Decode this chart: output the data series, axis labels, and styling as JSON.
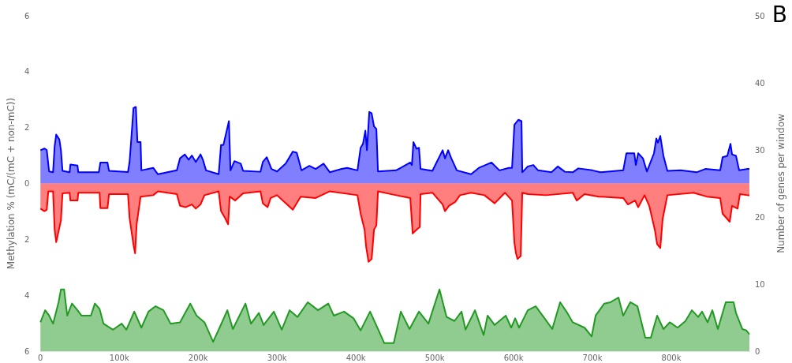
{
  "chart_data": {
    "type": "area",
    "ylabel": "Methylation % (mC/(mC + non-mC))",
    "y2label": "Number of genes per window",
    "annotations": [
      "B"
    ],
    "xlim": [
      0,
      900000
    ],
    "xticks": [
      0,
      {
        "value": 100000,
        "label": "100k"
      },
      {
        "value": 200000,
        "label": "200k"
      },
      {
        "value": 300000,
        "label": "300k"
      },
      {
        "value": 400000,
        "label": "400k"
      },
      {
        "value": 500000,
        "label": "500k"
      },
      {
        "value": 600000,
        "label": "600k"
      },
      {
        "value": 700000,
        "label": "700k"
      },
      {
        "value": 800000,
        "label": "800k"
      }
    ],
    "ylim": [
      -6,
      6
    ],
    "yticks": [
      {
        "value": -6,
        "label": "6"
      },
      {
        "value": -4,
        "label": "4"
      },
      {
        "value": -2,
        "label": "2"
      },
      0,
      2,
      4,
      6
    ],
    "y2lim": [
      0,
      50
    ],
    "y2ticks": [
      0,
      10,
      20,
      30,
      40,
      50
    ],
    "grid": false,
    "series": [
      {
        "color": "#0000ff",
        "x": [
          0,
          5000,
          8000,
          11000,
          16000,
          18000,
          20000,
          24000,
          26000,
          28000,
          37000,
          38000,
          47000,
          48000,
          74000,
          76000,
          85000,
          87000,
          111000,
          113000,
          115000,
          118000,
          121000,
          123000,
          127000,
          128000,
          143000,
          149000,
          173000,
          177000,
          183000,
          188000,
          192000,
          197000,
          203000,
          206000,
          210000,
          226000,
          229000,
          232000,
          239000,
          241000,
          246000,
          254000,
          257000,
          279000,
          282000,
          287000,
          293000,
          300000,
          311000,
          320000,
          325000,
          331000,
          341000,
          349000,
          359000,
          367000,
          382000,
          389000,
          402000,
          406000,
          409000,
          412000,
          414000,
          417000,
          420000,
          423000,
          426000,
          428000,
          451000,
          469000,
          471000,
          473000,
          477000,
          480000,
          482000,
          497000,
          510000,
          513000,
          517000,
          521000,
          528000,
          546000,
          556000,
          572000,
          582000,
          594000,
          598000,
          601000,
          606000,
          610000,
          611000,
          618000,
          625000,
          631000,
          648000,
          656000,
          665000,
          675000,
          682000,
          700000,
          710000,
          739000,
          743000,
          753000,
          755000,
          758000,
          764000,
          769000,
          778000,
          781000,
          783000,
          786000,
          790000,
          795000,
          812000,
          832000,
          843000,
          862000,
          865000,
          871000,
          875000,
          877000,
          882000,
          886000,
          897000,
          899000
        ],
        "values": [
          1.19,
          1.25,
          1.2,
          0.43,
          0.4,
          1.33,
          1.75,
          1.57,
          1.19,
          0.45,
          0.4,
          0.68,
          0.64,
          0.4,
          0.4,
          0.75,
          0.75,
          0.45,
          0.41,
          0.77,
          1.52,
          2.7,
          2.74,
          1.48,
          1.48,
          0.47,
          0.56,
          0.33,
          0.47,
          0.9,
          1.04,
          0.85,
          1.0,
          0.77,
          1.04,
          0.85,
          0.47,
          0.33,
          1.38,
          1.38,
          2.23,
          0.47,
          0.8,
          0.71,
          0.45,
          0.42,
          0.77,
          0.94,
          0.52,
          0.43,
          0.71,
          1.14,
          1.1,
          0.47,
          0.63,
          0.52,
          0.71,
          0.4,
          0.52,
          0.56,
          0.47,
          1.28,
          1.42,
          1.89,
          1.19,
          2.56,
          2.51,
          2.04,
          1.95,
          0.43,
          0.47,
          0.75,
          0.66,
          1.48,
          1.24,
          1.28,
          0.52,
          0.45,
          1.19,
          0.9,
          1.19,
          0.9,
          0.47,
          0.33,
          0.56,
          0.75,
          0.47,
          0.56,
          0.56,
          2.1,
          2.28,
          2.23,
          0.4,
          0.61,
          0.66,
          0.47,
          0.4,
          0.61,
          0.42,
          0.4,
          0.54,
          0.47,
          0.4,
          0.47,
          1.08,
          1.08,
          0.66,
          1.08,
          0.9,
          0.43,
          1.08,
          1.61,
          1.46,
          1.7,
          0.99,
          0.45,
          0.47,
          0.4,
          0.52,
          0.47,
          0.94,
          0.99,
          1.42,
          1.04,
          0.99,
          0.47,
          0.52,
          0.52
        ]
      },
      {
        "color": "#ff0000",
        "x": [
          0,
          5000,
          8000,
          10000,
          16000,
          18000,
          20000,
          26000,
          28000,
          37000,
          38000,
          47000,
          48000,
          75000,
          76000,
          85000,
          87000,
          111000,
          113000,
          118000,
          120000,
          122000,
          127000,
          143000,
          149000,
          173000,
          177000,
          184000,
          192000,
          197000,
          203000,
          208000,
          226000,
          229000,
          234000,
          238000,
          240000,
          247000,
          257000,
          279000,
          282000,
          288000,
          292000,
          300000,
          320000,
          330000,
          349000,
          367000,
          402000,
          406000,
          411000,
          413000,
          416000,
          420000,
          423000,
          426000,
          428000,
          451000,
          469000,
          472000,
          477000,
          481000,
          482000,
          497000,
          510000,
          513000,
          518000,
          526000,
          532000,
          546000,
          563000,
          576000,
          589000,
          598000,
          601000,
          603000,
          605000,
          609000,
          611000,
          618000,
          641000,
          675000,
          680000,
          690000,
          708000,
          739000,
          745000,
          754000,
          758000,
          766000,
          772000,
          779000,
          782000,
          786000,
          789000,
          795000,
          828000,
          845000,
          862000,
          865000,
          874000,
          877000,
          884000,
          887000,
          897000,
          899000
        ],
        "values": [
          -0.9,
          -0.99,
          -0.94,
          -0.28,
          -0.28,
          -1.65,
          -2.1,
          -1.32,
          -0.35,
          -0.33,
          -0.61,
          -0.61,
          -0.33,
          -0.33,
          -0.88,
          -0.88,
          -0.38,
          -0.38,
          -1.23,
          -2.2,
          -2.5,
          -1.46,
          -0.47,
          -0.42,
          -0.28,
          -0.38,
          -0.8,
          -0.85,
          -0.75,
          -0.9,
          -0.75,
          -0.42,
          -0.28,
          -0.99,
          -1.23,
          -1.46,
          -0.47,
          -0.61,
          -0.35,
          -0.28,
          -0.71,
          -0.85,
          -0.52,
          -0.42,
          -0.94,
          -0.47,
          -0.52,
          -0.28,
          -0.42,
          -1.08,
          -1.65,
          -2.26,
          -2.8,
          -2.7,
          -1.65,
          -1.5,
          -0.28,
          -0.42,
          -0.52,
          -1.79,
          -1.65,
          -1.56,
          -0.38,
          -0.33,
          -0.75,
          -0.99,
          -0.8,
          -0.66,
          -0.42,
          -0.33,
          -0.42,
          -0.71,
          -0.33,
          -0.61,
          -2.12,
          -2.5,
          -2.7,
          -2.6,
          -0.33,
          -0.38,
          -0.42,
          -0.33,
          -0.61,
          -0.38,
          -0.47,
          -0.52,
          -0.75,
          -0.61,
          -0.85,
          -0.42,
          -0.8,
          -1.65,
          -2.17,
          -2.31,
          -1.27,
          -0.42,
          -0.33,
          -0.47,
          -0.52,
          -1.08,
          -1.37,
          -0.8,
          -0.9,
          -0.38,
          -0.42,
          -0.42
        ]
      },
      {
        "color": "#229922",
        "axis": "y2",
        "x": [
          0,
          6000,
          11000,
          16000,
          23000,
          26000,
          30000,
          34000,
          40000,
          47000,
          52000,
          64000,
          69000,
          75000,
          80000,
          92000,
          103000,
          109000,
          119000,
          128000,
          137000,
          146000,
          156000,
          165000,
          177000,
          190000,
          198000,
          208000,
          219000,
          231000,
          237000,
          244000,
          260000,
          267000,
          277000,
          283000,
          296000,
          306000,
          316000,
          326000,
          339000,
          352000,
          365000,
          372000,
          385000,
          397000,
          406000,
          418000,
          428000,
          436000,
          448000,
          457000,
          468000,
          480000,
          492000,
          506000,
          515000,
          525000,
          534000,
          539000,
          551000,
          562000,
          567000,
          576000,
          590000,
          597000,
          602000,
          607000,
          618000,
          628000,
          638000,
          649000,
          659000,
          667000,
          675000,
          690000,
          699000,
          704000,
          715000,
          723000,
          733000,
          739000,
          748000,
          757000,
          767000,
          774000,
          782000,
          790000,
          798000,
          808000,
          818000,
          826000,
          834000,
          839000,
          846000,
          852000,
          859000,
          869000,
          879000,
          882000,
          890000,
          895000,
          899000
        ],
        "values": [
          4.3,
          6.1,
          5.3,
          4.1,
          7.3,
          9.2,
          9.2,
          5.3,
          7.1,
          6.1,
          5.3,
          5.3,
          7.1,
          6.3,
          4.1,
          3.2,
          4.1,
          3.2,
          5.9,
          3.5,
          5.9,
          6.7,
          6.1,
          4.1,
          4.3,
          7.1,
          5.3,
          4.3,
          1.4,
          4.5,
          6.1,
          3.3,
          7.1,
          4.1,
          5.7,
          3.9,
          5.9,
          3.2,
          6.1,
          5.1,
          7.3,
          6.1,
          7.1,
          5.3,
          5.9,
          4.9,
          3.1,
          5.9,
          3.3,
          1.2,
          1.2,
          5.9,
          3.3,
          5.9,
          4.1,
          9.2,
          5.1,
          4.5,
          5.9,
          3.2,
          6.1,
          2.4,
          5.3,
          3.9,
          5.3,
          3.5,
          4.9,
          3.5,
          6.1,
          6.7,
          5.1,
          3.3,
          7.3,
          5.9,
          4.3,
          3.5,
          2.2,
          5.3,
          7.1,
          7.3,
          8.0,
          5.3,
          7.3,
          6.7,
          2.0,
          2.0,
          5.3,
          3.3,
          4.3,
          3.5,
          4.5,
          6.1,
          5.1,
          5.9,
          4.3,
          6.1,
          3.3,
          7.3,
          7.3,
          5.7,
          3.3,
          3.1,
          2.5
        ]
      }
    ]
  }
}
